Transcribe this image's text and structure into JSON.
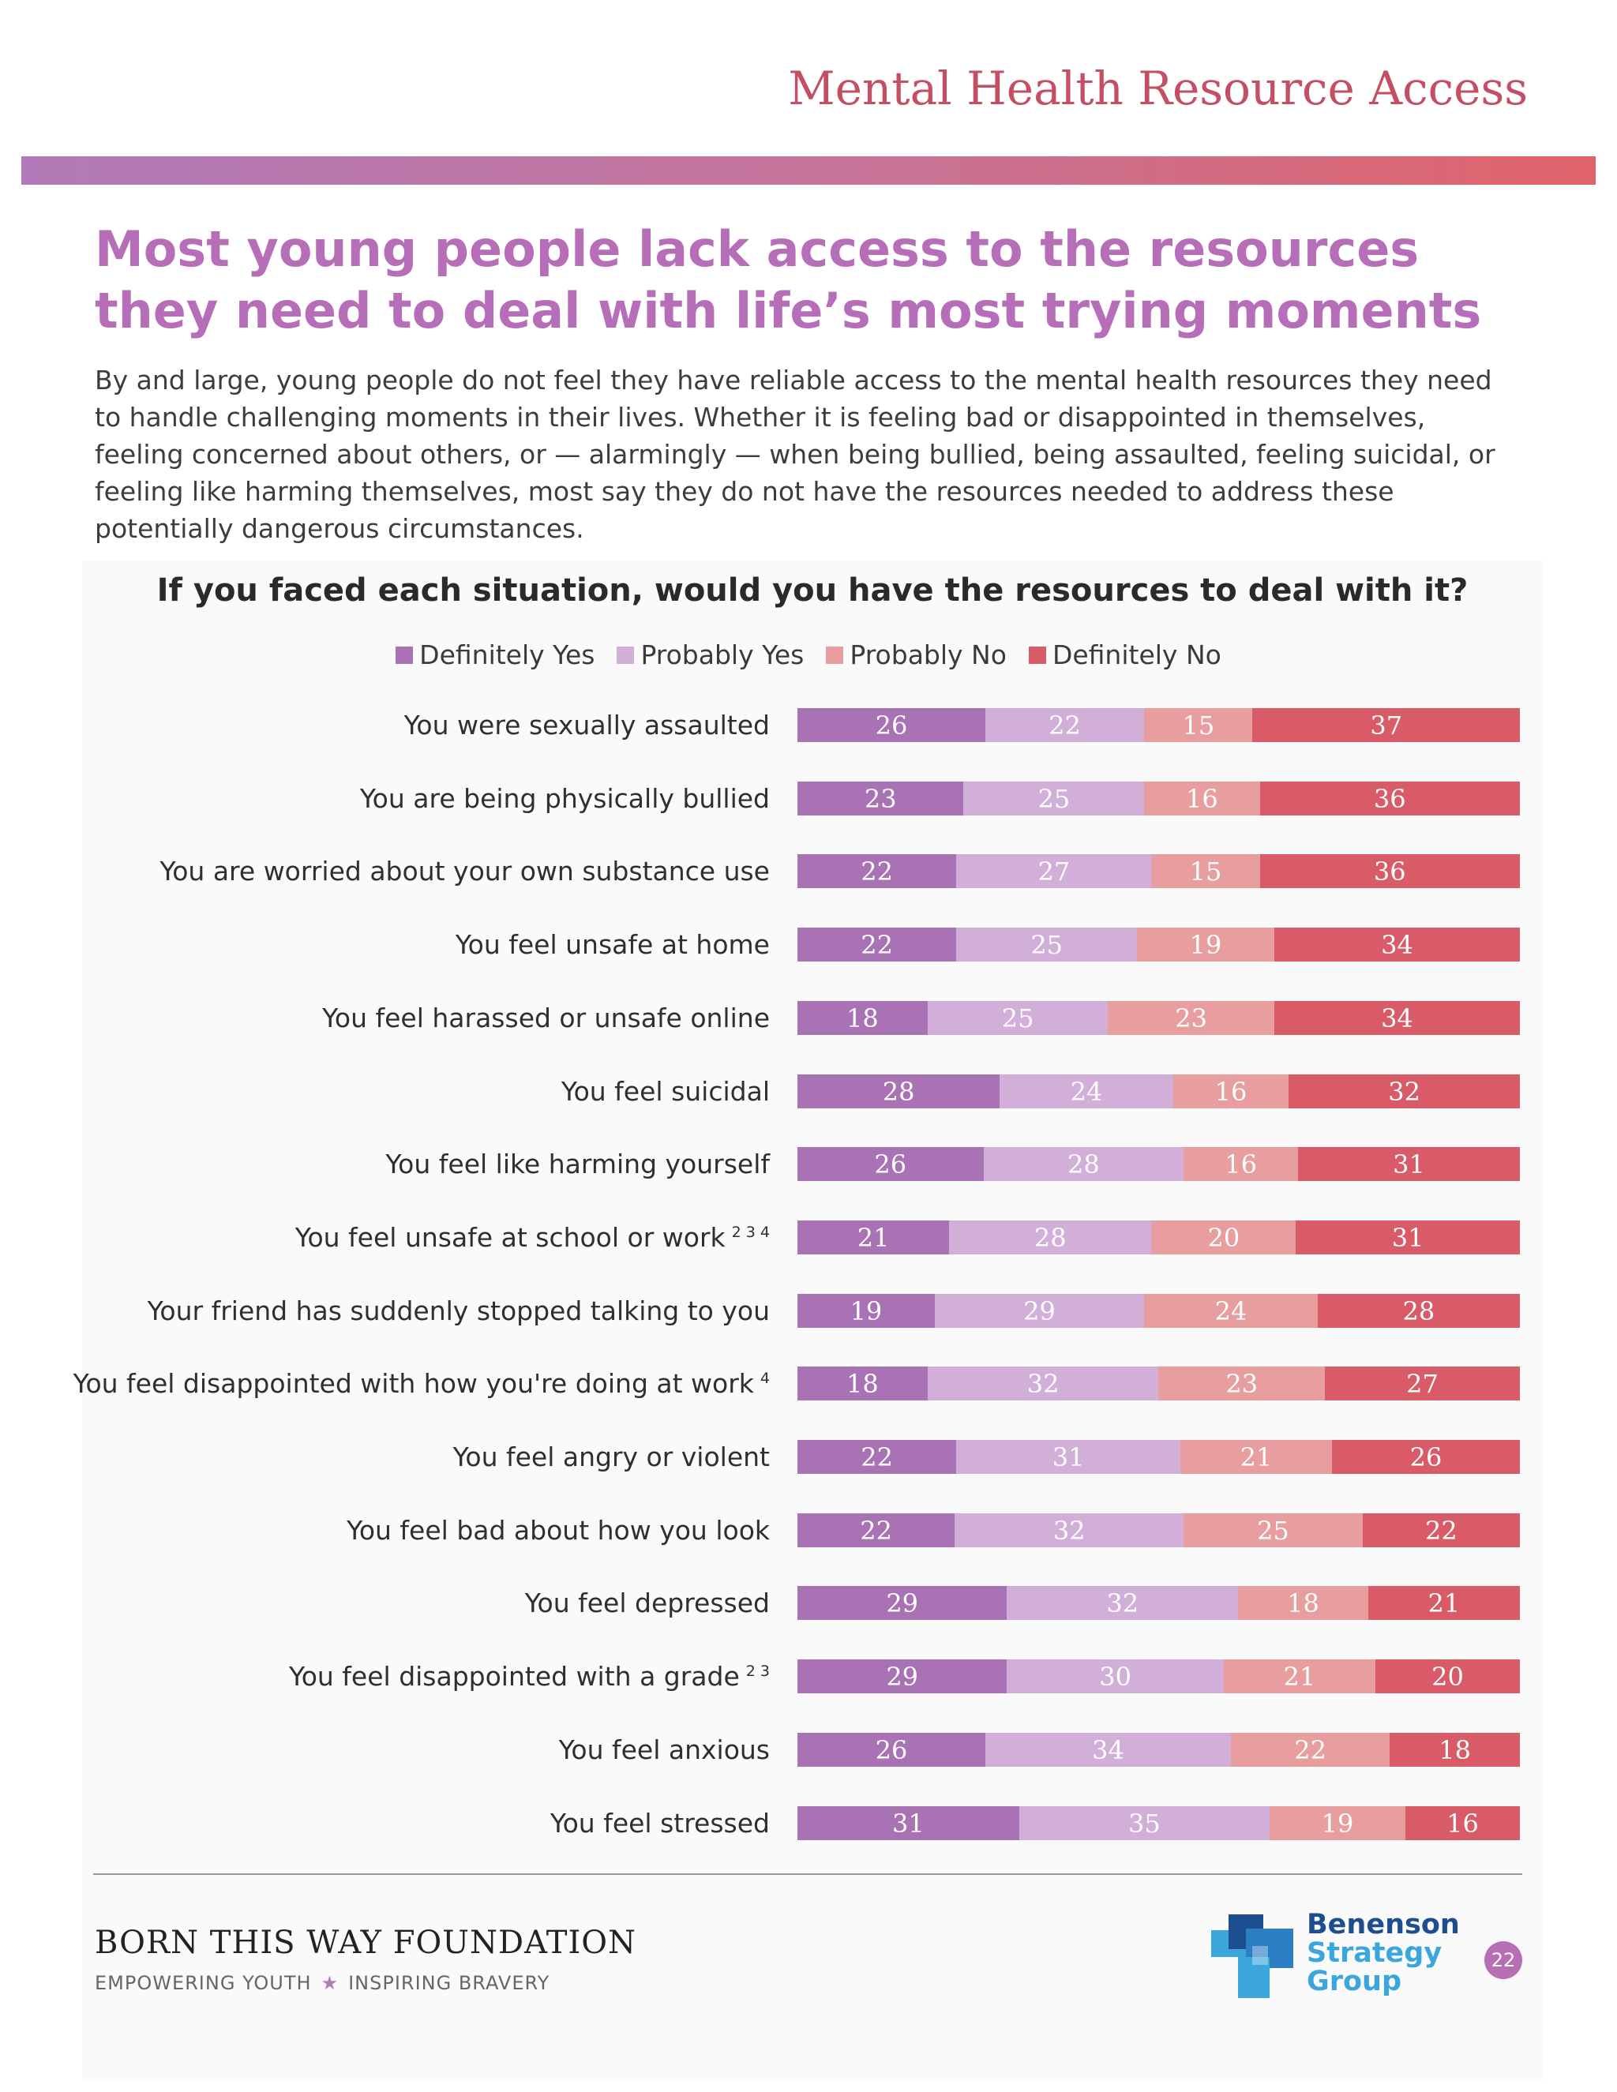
{
  "header": {
    "title": "Mental Health Resource Access"
  },
  "headline": "Most young people lack access to the resources they need to deal with life’s most trying moments",
  "body": "By and large, young people do not feel they have reliable access to the mental health resources they need to handle challenging moments in their lives. Whether it is feeling bad or disappointed in themselves, feeling concerned about others, or — alarmingly — when being bullied, being assaulted, feeling suicidal, or feeling like harming themselves, most say they do not have the resources needed to address these potentially dangerous circumstances.",
  "colors": {
    "definitely_yes": "#a972b5",
    "probably_yes": "#d2afd8",
    "probably_no": "#e89d9f",
    "definitely_no": "#d95b67"
  },
  "chart_data": {
    "type": "bar",
    "orientation": "horizontal",
    "stacked": true,
    "title": "If you faced each situation, would you have the resources to deal with it?",
    "legend_position": "top",
    "series_names": [
      "Definitely Yes",
      "Probably Yes",
      "Probably No",
      "Definitely No"
    ],
    "rows": [
      {
        "label": "You were sexually assaulted",
        "sup": "",
        "values": [
          26,
          22,
          15,
          37
        ]
      },
      {
        "label": "You are being physically bullied",
        "sup": "",
        "values": [
          23,
          25,
          16,
          36
        ]
      },
      {
        "label": "You are worried about your own substance use",
        "sup": "",
        "values": [
          22,
          27,
          15,
          36
        ]
      },
      {
        "label": "You feel unsafe at home",
        "sup": "",
        "values": [
          22,
          25,
          19,
          34
        ]
      },
      {
        "label": "You feel harassed or unsafe online",
        "sup": "",
        "values": [
          18,
          25,
          23,
          34
        ]
      },
      {
        "label": "You feel suicidal",
        "sup": "",
        "values": [
          28,
          24,
          16,
          32
        ]
      },
      {
        "label": "You feel like harming yourself",
        "sup": "",
        "values": [
          26,
          28,
          16,
          31
        ]
      },
      {
        "label": "You feel unsafe at school or work",
        "sup": "2 3 4",
        "values": [
          21,
          28,
          20,
          31
        ]
      },
      {
        "label": "Your friend has suddenly stopped talking to you",
        "sup": "",
        "values": [
          19,
          29,
          24,
          28
        ]
      },
      {
        "label": "You feel disappointed with how you're doing at work",
        "sup": "4",
        "values": [
          18,
          32,
          23,
          27
        ]
      },
      {
        "label": "You feel angry or violent",
        "sup": "",
        "values": [
          22,
          31,
          21,
          26
        ]
      },
      {
        "label": "You feel bad about how you look",
        "sup": "",
        "values": [
          22,
          32,
          25,
          22
        ]
      },
      {
        "label": "You feel depressed",
        "sup": "",
        "values": [
          29,
          32,
          18,
          21
        ]
      },
      {
        "label": "You feel disappointed with a grade",
        "sup": "2 3",
        "values": [
          29,
          30,
          21,
          20
        ]
      },
      {
        "label": "You feel anxious",
        "sup": "",
        "values": [
          26,
          34,
          22,
          18
        ]
      },
      {
        "label": "You feel stressed",
        "sup": "",
        "values": [
          31,
          35,
          19,
          16
        ]
      }
    ]
  },
  "footer": {
    "foundation": "BORN THIS WAY FOUNDATION",
    "tagline_left": "EMPOWERING YOUTH",
    "tagline_star": "★",
    "tagline_right": "INSPIRING BRAVERY",
    "bsg_line1": "Benenson",
    "bsg_line2": "Strategy",
    "bsg_line3": "Group",
    "page_number": "22"
  }
}
